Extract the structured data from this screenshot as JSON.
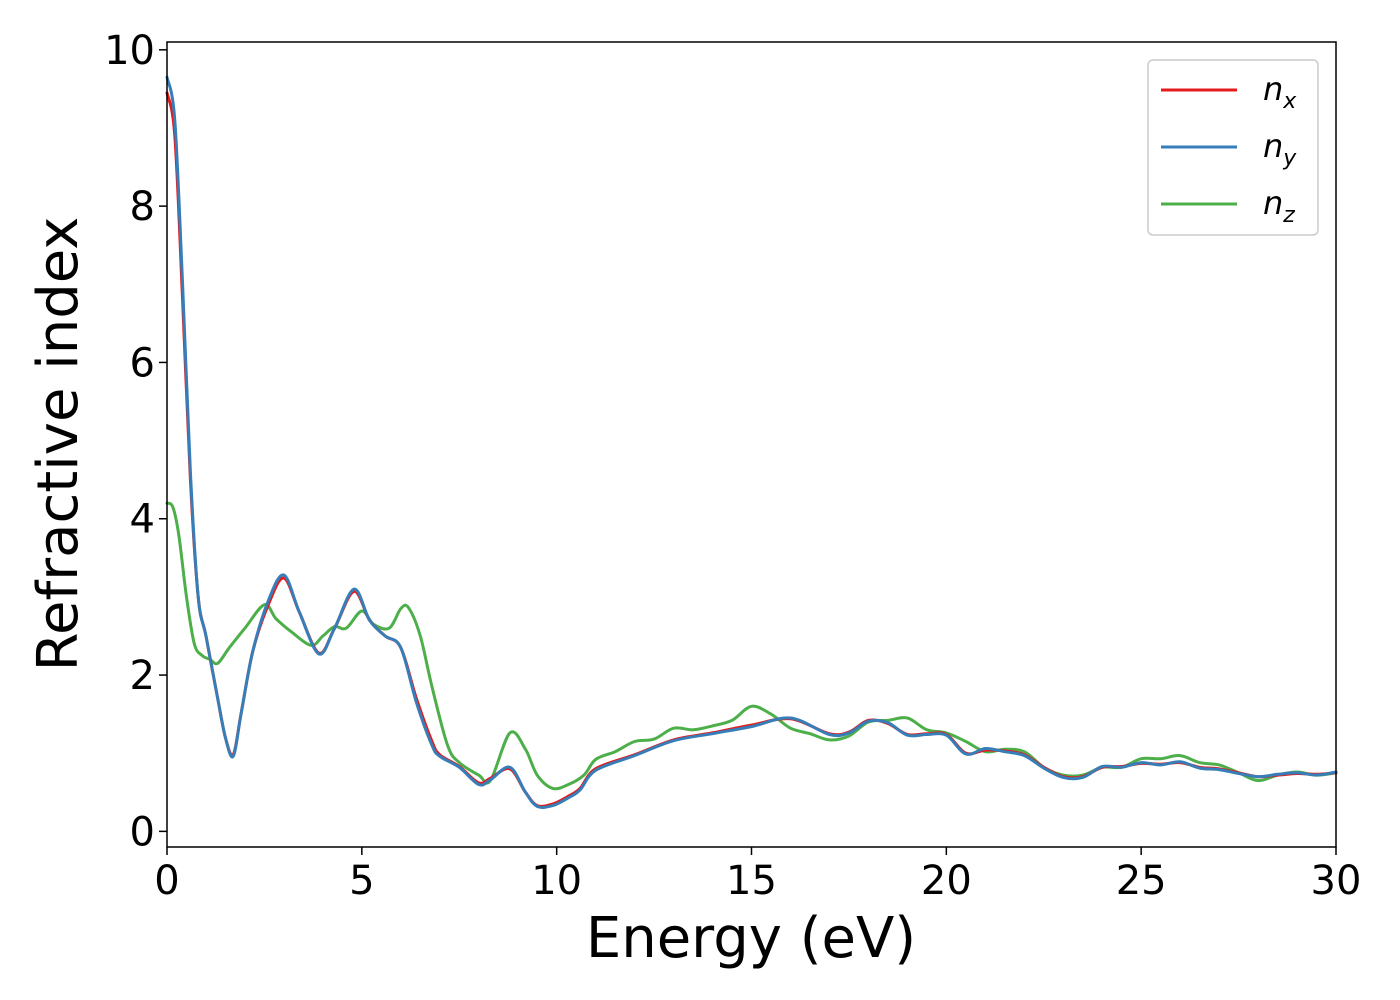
{
  "chart_data": {
    "type": "line",
    "title": "",
    "xlabel": "Energy (eV)",
    "ylabel": "Refractive index",
    "xlim": [
      0,
      30
    ],
    "ylim": [
      -0.2,
      10.1
    ],
    "xticks": [
      0,
      5,
      10,
      15,
      20,
      25,
      30
    ],
    "yticks": [
      0,
      2,
      4,
      6,
      8,
      10
    ],
    "grid": false,
    "legend_position": "top-right",
    "series": [
      {
        "name": "n",
        "subscript": "x",
        "color": "#e41a1c",
        "x": [
          0,
          0.2,
          0.4,
          0.6,
          0.8,
          1.0,
          1.3,
          1.5,
          1.7,
          1.9,
          2.2,
          2.6,
          3.0,
          3.4,
          3.9,
          4.3,
          4.8,
          5.2,
          5.6,
          6.0,
          6.4,
          6.8,
          7.0,
          7.5,
          8.0,
          8.3,
          8.8,
          9.2,
          9.5,
          9.9,
          10.3,
          10.6,
          11.0,
          12.0,
          13.0,
          14.0,
          15.0,
          16.0,
          17.0,
          17.5,
          18.0,
          18.5,
          19.0,
          19.5,
          20.0,
          20.5,
          21.0,
          21.5,
          22.0,
          22.5,
          23.0,
          23.5,
          24.0,
          24.5,
          25.0,
          25.5,
          26.0,
          26.5,
          27.0,
          27.5,
          28.0,
          28.5,
          29.0,
          29.5,
          30.0
        ],
        "y": [
          9.45,
          8.9,
          6.8,
          4.5,
          3.0,
          2.5,
          1.7,
          1.2,
          0.98,
          1.5,
          2.3,
          2.9,
          3.24,
          2.8,
          2.28,
          2.6,
          3.07,
          2.7,
          2.5,
          2.35,
          1.7,
          1.15,
          0.98,
          0.83,
          0.62,
          0.68,
          0.8,
          0.5,
          0.33,
          0.35,
          0.45,
          0.55,
          0.8,
          0.98,
          1.17,
          1.26,
          1.36,
          1.44,
          1.25,
          1.27,
          1.42,
          1.38,
          1.24,
          1.25,
          1.24,
          1.0,
          1.04,
          1.03,
          0.98,
          0.82,
          0.7,
          0.7,
          0.82,
          0.83,
          0.87,
          0.86,
          0.88,
          0.82,
          0.8,
          0.75,
          0.7,
          0.72,
          0.74,
          0.73,
          0.75
        ]
      },
      {
        "name": "n",
        "subscript": "y",
        "color": "#377eb8",
        "x": [
          0,
          0.2,
          0.4,
          0.6,
          0.8,
          1.0,
          1.3,
          1.5,
          1.7,
          1.9,
          2.2,
          2.6,
          3.0,
          3.4,
          3.9,
          4.3,
          4.8,
          5.2,
          5.6,
          6.0,
          6.4,
          6.8,
          7.0,
          7.5,
          8.0,
          8.3,
          8.8,
          9.2,
          9.5,
          9.9,
          10.3,
          10.6,
          11.0,
          12.0,
          13.0,
          14.0,
          15.0,
          16.0,
          17.0,
          17.5,
          18.0,
          18.5,
          19.0,
          19.5,
          20.0,
          20.5,
          21.0,
          21.5,
          22.0,
          22.5,
          23.0,
          23.5,
          24.0,
          24.5,
          25.0,
          25.5,
          26.0,
          26.5,
          27.0,
          27.5,
          28.0,
          28.5,
          29.0,
          29.5,
          30.0
        ],
        "y": [
          9.65,
          9.1,
          7.0,
          4.6,
          3.0,
          2.5,
          1.7,
          1.2,
          0.96,
          1.5,
          2.3,
          2.95,
          3.28,
          2.8,
          2.27,
          2.6,
          3.1,
          2.7,
          2.5,
          2.35,
          1.65,
          1.1,
          0.96,
          0.82,
          0.6,
          0.66,
          0.82,
          0.5,
          0.32,
          0.33,
          0.43,
          0.53,
          0.78,
          0.97,
          1.16,
          1.25,
          1.34,
          1.45,
          1.24,
          1.26,
          1.41,
          1.39,
          1.23,
          1.24,
          1.23,
          0.99,
          1.06,
          1.02,
          0.97,
          0.81,
          0.69,
          0.69,
          0.83,
          0.82,
          0.88,
          0.85,
          0.89,
          0.81,
          0.79,
          0.74,
          0.7,
          0.73,
          0.75,
          0.72,
          0.76
        ]
      },
      {
        "name": "n",
        "subscript": "z",
        "color": "#4daf4a",
        "x": [
          0,
          0.15,
          0.3,
          0.5,
          0.7,
          0.9,
          1.1,
          1.3,
          1.6,
          2.0,
          2.5,
          2.8,
          3.2,
          3.7,
          4.0,
          4.3,
          4.6,
          5.0,
          5.3,
          5.7,
          6.0,
          6.2,
          6.5,
          6.8,
          7.2,
          7.5,
          8.0,
          8.3,
          8.8,
          9.2,
          9.5,
          9.9,
          10.3,
          10.7,
          11.0,
          11.5,
          12.0,
          12.5,
          13.0,
          13.5,
          14.0,
          14.5,
          15.0,
          15.5,
          16.0,
          16.5,
          17.0,
          17.5,
          18.0,
          18.5,
          19.0,
          19.5,
          20.0,
          20.5,
          21.0,
          21.5,
          22.0,
          22.5,
          23.0,
          23.5,
          24.0,
          24.5,
          25.0,
          25.5,
          26.0,
          26.5,
          27.0,
          27.5,
          28.0,
          28.5,
          29.0,
          29.5,
          30.0
        ],
        "y": [
          4.2,
          4.15,
          3.8,
          3.0,
          2.4,
          2.25,
          2.2,
          2.15,
          2.35,
          2.6,
          2.9,
          2.72,
          2.55,
          2.38,
          2.5,
          2.62,
          2.6,
          2.82,
          2.65,
          2.6,
          2.85,
          2.86,
          2.5,
          1.85,
          1.1,
          0.88,
          0.72,
          0.65,
          1.26,
          1.05,
          0.72,
          0.55,
          0.6,
          0.72,
          0.92,
          1.02,
          1.15,
          1.18,
          1.32,
          1.3,
          1.35,
          1.42,
          1.6,
          1.5,
          1.32,
          1.25,
          1.17,
          1.22,
          1.4,
          1.42,
          1.45,
          1.3,
          1.26,
          1.15,
          1.02,
          1.05,
          1.02,
          0.82,
          0.72,
          0.72,
          0.82,
          0.82,
          0.93,
          0.93,
          0.97,
          0.88,
          0.85,
          0.75,
          0.65,
          0.72,
          0.76,
          0.72,
          0.75
        ]
      }
    ]
  }
}
